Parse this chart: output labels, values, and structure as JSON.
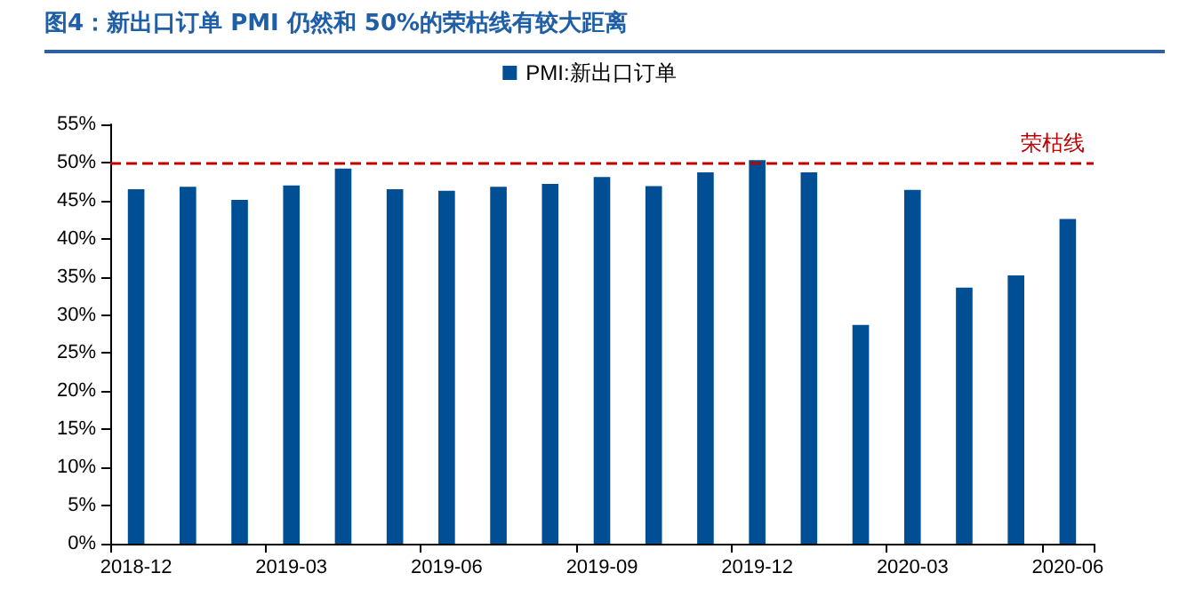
{
  "chart_data": {
    "type": "bar",
    "title": "图4：新出口订单 PMI 仍然和 50%的荣枯线有较大距离",
    "categories": [
      "2018-12",
      null,
      null,
      "2019-03",
      null,
      null,
      "2019-06",
      null,
      null,
      "2019-09",
      null,
      null,
      "2019-12",
      null,
      null,
      "2020-03",
      null,
      null,
      "2020-06"
    ],
    "series": [
      {
        "name": "PMI:新出口订单",
        "color": "#004f95",
        "values": [
          46.5,
          46.8,
          45.1,
          47.0,
          49.2,
          46.5,
          46.3,
          46.8,
          47.2,
          48.1,
          46.9,
          48.7,
          50.3,
          48.7,
          28.7,
          46.4,
          33.6,
          35.2,
          42.6
        ]
      }
    ],
    "ylim": [
      0,
      55
    ],
    "yticks": [
      {
        "value": 0,
        "label": "0%"
      },
      {
        "value": 5,
        "label": "5%"
      },
      {
        "value": 10,
        "label": "10%"
      },
      {
        "value": 15,
        "label": "15%"
      },
      {
        "value": 20,
        "label": "20%"
      },
      {
        "value": 25,
        "label": "25%"
      },
      {
        "value": 30,
        "label": "30%"
      },
      {
        "value": 35,
        "label": "35%"
      },
      {
        "value": 40,
        "label": "40%"
      },
      {
        "value": 45,
        "label": "45%"
      },
      {
        "value": 50,
        "label": "50%"
      },
      {
        "value": 55,
        "label": "55%"
      }
    ],
    "ref_lines": [
      {
        "axis": "y",
        "value": 50,
        "label": "荣枯线",
        "color": "#c00000",
        "line_style": "dashed"
      }
    ],
    "grid": false,
    "legend": "top"
  }
}
